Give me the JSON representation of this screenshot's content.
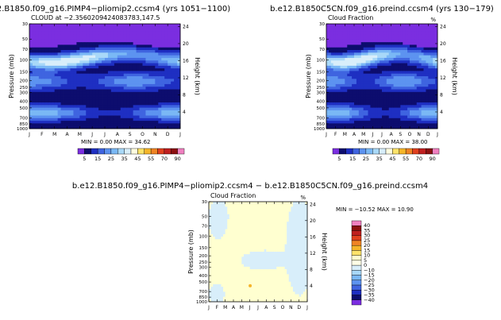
{
  "chart_data": [
    {
      "type": "heatmap",
      "panel": "top-left",
      "title": "b.e12.B1850.f09_g16.PIMP4−pliomip2.ccsm4  (yrs 1051−1100)",
      "subtitle": "CLOUD  at −2.3560209424083783,147.5",
      "unit_mark": "",
      "ylabel": "Pressure (mb)",
      "ylabel_right": "Height (km)",
      "min_label": "MIN =",
      "min_value": "0.00",
      "max_label": "MAX =",
      "max_value": "34.62",
      "palette": "cloud",
      "field": "clim1"
    },
    {
      "type": "heatmap",
      "panel": "top-right",
      "title": "b.e12.B1850C5CN.f09_g16.preind.ccsm4  (yrs 130−179)",
      "subtitle": "Cloud Fraction",
      "unit_mark": "%",
      "ylabel": "Pressure (mb)",
      "ylabel_right": "Height (km)",
      "min_label": "MIN =",
      "min_value": "0.00",
      "max_label": "MAX =",
      "max_value": "38.00",
      "palette": "cloud",
      "field": "clim2"
    },
    {
      "type": "heatmap",
      "panel": "bottom-center",
      "title": "b.e12.B1850.f09_g16.PIMP4−pliomip2.ccsm4  −  b.e12.B1850C5CN.f09_g16.preind.ccsm4",
      "subtitle": "Cloud Fraction",
      "unit_mark": "%",
      "ylabel": "Pressure (mb)",
      "ylabel_right": "Height (km)",
      "min_label": "MIN =",
      "min_value": "−10.52",
      "max_label": "MAX =",
      "max_value": "10.90",
      "palette": "diff",
      "field": "diff"
    }
  ],
  "axes": {
    "months": [
      "J",
      "F",
      "M",
      "A",
      "M",
      "J",
      "J",
      "A",
      "S",
      "O",
      "N",
      "D",
      "J"
    ],
    "pressure_ticks": [
      "30",
      "50",
      "70",
      "100",
      "150",
      "200",
      "250",
      "300",
      "400",
      "500",
      "700",
      "850",
      "1000"
    ],
    "pressure_values": [
      30,
      50,
      70,
      100,
      150,
      200,
      250,
      300,
      400,
      500,
      700,
      850,
      1000
    ],
    "height_ticks": [
      "24",
      "20",
      "16",
      "12",
      "8",
      "4"
    ],
    "height_values": [
      24,
      20,
      16,
      12,
      8,
      4
    ]
  },
  "colorbars": {
    "cloud": {
      "orientation": "horizontal",
      "labels": [
        "5",
        "15",
        "25",
        "35",
        "45",
        "55",
        "70",
        "90"
      ],
      "levels": [
        5,
        10,
        15,
        20,
        25,
        30,
        35,
        40,
        45,
        50,
        55,
        60,
        70,
        80,
        90
      ],
      "colors": [
        "#7b2ee0",
        "#0d0d6e",
        "#1e2fc2",
        "#3f64e0",
        "#5d93f0",
        "#7ab8f5",
        "#a8d8f8",
        "#d8eefa",
        "#fffde0",
        "#fde36a",
        "#f5b52a",
        "#f08424",
        "#e0401e",
        "#bf1f1f",
        "#8c1010",
        "#f080c0"
      ]
    },
    "diff": {
      "orientation": "vertical",
      "labels": [
        "40",
        "35",
        "30",
        "25",
        "20",
        "15",
        "10",
        "5",
        "0",
        "−10",
        "−15",
        "−20",
        "−25",
        "−30",
        "−35",
        "−40"
      ],
      "colors": [
        "#f080c0",
        "#8c1010",
        "#bf1f1f",
        "#e0401e",
        "#f08424",
        "#f5b52a",
        "#fde36a",
        "#ffffd0",
        "#ffffe6",
        "#d8eefa",
        "#a8d8f8",
        "#7ab8f5",
        "#5d93f0",
        "#3f64e0",
        "#1e2fc2",
        "#0d0d6e",
        "#7b2ee0"
      ]
    }
  },
  "colors": {
    "stratosphere": "#7b2ee0",
    "diff_positive": "#ffffd0",
    "diff_negative": "#d8eefa",
    "diff_marker": "#f5b52a"
  }
}
